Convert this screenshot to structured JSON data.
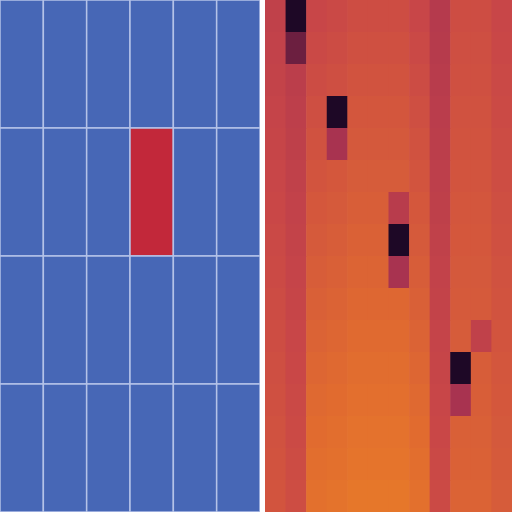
{
  "chart_data": [
    {
      "type": "heatmap",
      "grid": true,
      "tick_labels": false,
      "colors": [
        "#4767b6",
        "#c2283a"
      ],
      "color_range": [
        0,
        1
      ],
      "cells": [
        [
          0,
          0,
          0,
          0,
          0,
          0
        ],
        [
          0,
          0,
          0,
          1,
          0,
          0
        ],
        [
          0,
          0,
          0,
          0,
          0,
          0
        ],
        [
          0,
          0,
          0,
          0,
          0,
          0
        ]
      ]
    },
    {
      "type": "heatmap",
      "grid": false,
      "tick_labels": false,
      "colors": [
        "#1e0826",
        "#a02e52",
        "#c84648",
        "#e06a30",
        "#f08a22"
      ],
      "color_range": [
        0,
        1
      ],
      "cells": [
        [
          0.45,
          0.0,
          0.5,
          0.52,
          0.55,
          0.55,
          0.55,
          0.5,
          0.38,
          0.55,
          0.55,
          0.5
        ],
        [
          0.46,
          0.15,
          0.52,
          0.54,
          0.57,
          0.57,
          0.57,
          0.52,
          0.39,
          0.56,
          0.56,
          0.51
        ],
        [
          0.47,
          0.42,
          0.54,
          0.56,
          0.59,
          0.59,
          0.59,
          0.54,
          0.4,
          0.57,
          0.57,
          0.52
        ],
        [
          0.48,
          0.43,
          0.56,
          0.0,
          0.61,
          0.61,
          0.61,
          0.56,
          0.41,
          0.58,
          0.58,
          0.53
        ],
        [
          0.49,
          0.44,
          0.58,
          0.3,
          0.63,
          0.63,
          0.63,
          0.58,
          0.42,
          0.59,
          0.59,
          0.54
        ],
        [
          0.5,
          0.45,
          0.6,
          0.62,
          0.65,
          0.65,
          0.65,
          0.6,
          0.43,
          0.6,
          0.6,
          0.55
        ],
        [
          0.51,
          0.46,
          0.62,
          0.64,
          0.67,
          0.67,
          0.4,
          0.62,
          0.44,
          0.61,
          0.61,
          0.56
        ],
        [
          0.52,
          0.47,
          0.64,
          0.66,
          0.69,
          0.69,
          0.0,
          0.64,
          0.45,
          0.62,
          0.62,
          0.57
        ],
        [
          0.53,
          0.48,
          0.66,
          0.68,
          0.71,
          0.71,
          0.3,
          0.66,
          0.46,
          0.63,
          0.63,
          0.58
        ],
        [
          0.54,
          0.49,
          0.68,
          0.7,
          0.73,
          0.73,
          0.73,
          0.68,
          0.47,
          0.64,
          0.64,
          0.59
        ],
        [
          0.55,
          0.5,
          0.7,
          0.72,
          0.75,
          0.75,
          0.75,
          0.7,
          0.48,
          0.65,
          0.45,
          0.6
        ],
        [
          0.56,
          0.51,
          0.72,
          0.74,
          0.77,
          0.77,
          0.77,
          0.72,
          0.49,
          0.0,
          0.66,
          0.61
        ],
        [
          0.57,
          0.52,
          0.74,
          0.76,
          0.79,
          0.79,
          0.79,
          0.74,
          0.5,
          0.3,
          0.67,
          0.62
        ],
        [
          0.58,
          0.53,
          0.76,
          0.78,
          0.81,
          0.81,
          0.81,
          0.76,
          0.51,
          0.68,
          0.68,
          0.63
        ],
        [
          0.59,
          0.54,
          0.78,
          0.8,
          0.83,
          0.83,
          0.83,
          0.78,
          0.52,
          0.69,
          0.69,
          0.64
        ],
        [
          0.6,
          0.55,
          0.8,
          0.82,
          0.85,
          0.85,
          0.85,
          0.8,
          0.53,
          0.7,
          0.7,
          0.65
        ]
      ]
    }
  ]
}
